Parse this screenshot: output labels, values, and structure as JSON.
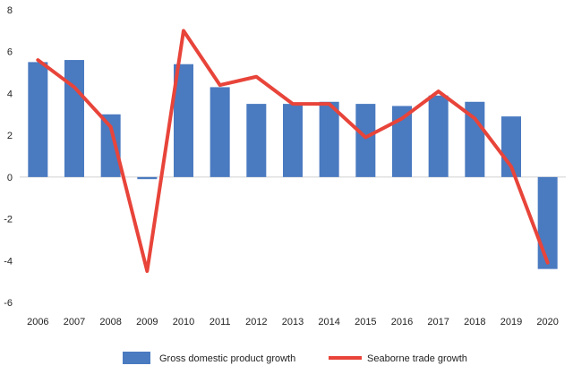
{
  "chart_data": {
    "type": "bar",
    "categories": [
      "2006",
      "2007",
      "2008",
      "2009",
      "2010",
      "2011",
      "2012",
      "2013",
      "2014",
      "2015",
      "2016",
      "2017",
      "2018",
      "2019",
      "2020"
    ],
    "series": [
      {
        "name": "Gross domestic product growth",
        "kind": "bar",
        "color": "#4a7ac0",
        "values": [
          5.5,
          5.6,
          3.0,
          -0.1,
          5.4,
          4.3,
          3.5,
          3.5,
          3.6,
          3.5,
          3.4,
          3.9,
          3.6,
          2.9,
          -4.4
        ]
      },
      {
        "name": "Seaborne trade growth",
        "kind": "line",
        "color": "#e8443a",
        "values": [
          5.6,
          4.3,
          2.4,
          -4.5,
          7.0,
          4.4,
          4.8,
          3.5,
          3.5,
          1.9,
          2.8,
          4.1,
          2.8,
          0.5,
          -4.1
        ]
      }
    ],
    "title": "",
    "xlabel": "",
    "ylabel": "",
    "ylim": [
      -6,
      8
    ],
    "yticks": [
      "-6",
      "-4",
      "-2",
      "0",
      "2",
      "4",
      "6",
      "8"
    ],
    "grid": false,
    "legend": "bottom"
  }
}
